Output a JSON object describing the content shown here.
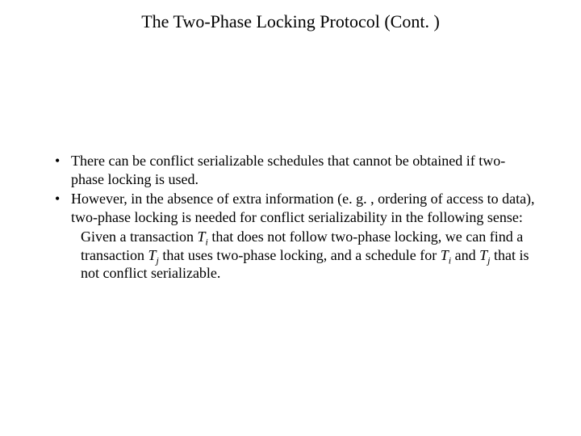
{
  "slide": {
    "title": "The Two-Phase Locking Protocol (Cont. )",
    "title_fontsize": 22,
    "body_fontsize": 18,
    "text_color": "#000000",
    "background_color": "#ffffff",
    "font_family": "Times New Roman",
    "bullets": [
      "There can be conflict serializable schedules that cannot be obtained if two-phase locking is used.",
      "However, in the absence of extra information (e. g. , ordering of  access to data), two-phase locking is needed for conflict serializability in the following sense:"
    ],
    "cont": {
      "a": "Given a transaction ",
      "t1": "T",
      "s1": "i",
      "b": " that does not follow two-phase locking, we can find a transaction ",
      "t2": "T",
      "s2": "j",
      "c": " that uses two-phase locking, and a schedule for ",
      "t3": "T",
      "s3": "i",
      "d": " and ",
      "t4": "T",
      "s4": "j",
      "e": " that is not conflict serializable."
    }
  }
}
